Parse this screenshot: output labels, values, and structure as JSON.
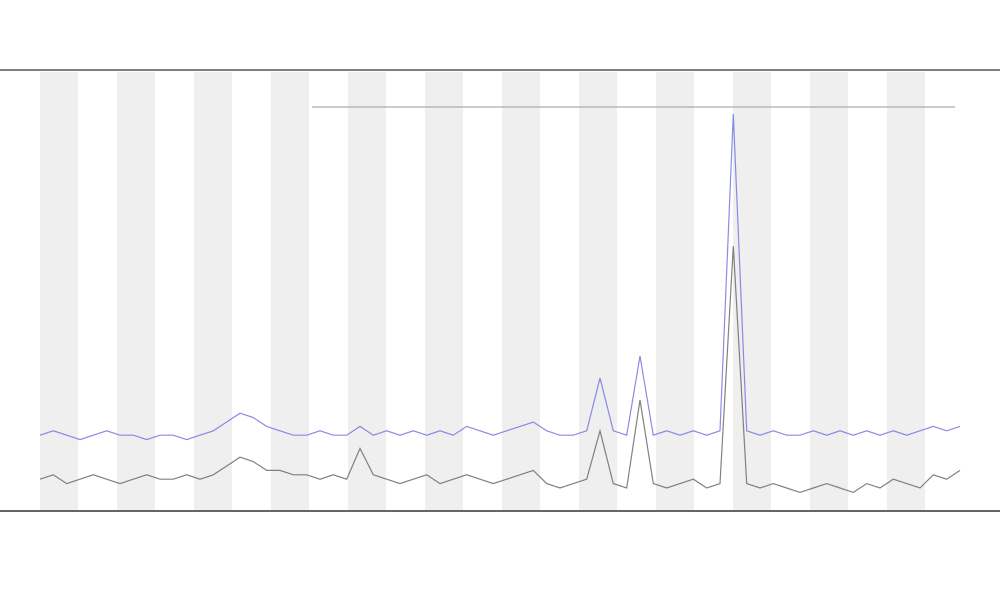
{
  "chart_data": {
    "type": "line",
    "x": [
      0,
      1,
      2,
      3,
      4,
      5,
      6,
      7,
      8,
      9,
      10,
      11,
      12,
      13,
      14,
      15,
      16,
      17,
      18,
      19,
      20,
      21,
      22,
      23,
      24,
      25,
      26,
      27,
      28,
      29,
      30,
      31,
      32,
      33,
      34,
      35,
      36,
      37,
      38,
      39,
      40,
      41,
      42,
      43,
      44,
      45,
      46,
      47,
      48,
      49,
      50,
      51,
      52,
      53,
      54,
      55,
      56,
      57,
      58,
      59,
      60,
      61,
      62,
      63,
      64,
      65,
      66,
      67,
      68,
      69
    ],
    "xlim": [
      0,
      69
    ],
    "ylim": [
      0,
      100
    ],
    "series": [
      {
        "color": "#6b6b6b",
        "values": [
          7,
          8,
          6,
          7,
          8,
          7,
          6,
          7,
          8,
          7,
          7,
          8,
          7,
          8,
          10,
          12,
          11,
          9,
          9,
          8,
          8,
          7,
          8,
          7,
          14,
          8,
          7,
          6,
          7,
          8,
          6,
          7,
          8,
          7,
          6,
          7,
          8,
          9,
          6,
          5,
          6,
          7,
          18,
          6,
          5,
          25,
          6,
          5,
          6,
          7,
          5,
          6,
          60,
          6,
          5,
          6,
          5,
          4,
          5,
          6,
          5,
          4,
          6,
          5,
          7,
          6,
          5,
          8,
          7,
          9
        ]
      },
      {
        "color": "#7478e0",
        "values": [
          17,
          18,
          17,
          16,
          17,
          18,
          17,
          17,
          16,
          17,
          17,
          16,
          17,
          18,
          20,
          22,
          21,
          19,
          18,
          17,
          17,
          18,
          17,
          17,
          19,
          17,
          18,
          17,
          18,
          17,
          18,
          17,
          19,
          18,
          17,
          18,
          19,
          20,
          18,
          17,
          17,
          18,
          30,
          18,
          17,
          35,
          17,
          18,
          17,
          18,
          17,
          18,
          90,
          18,
          17,
          18,
          17,
          17,
          18,
          17,
          18,
          17,
          18,
          17,
          18,
          17,
          18,
          19,
          18,
          19
        ]
      }
    ]
  }
}
